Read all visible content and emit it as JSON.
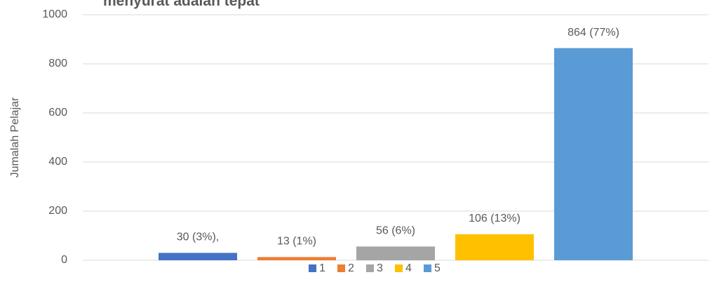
{
  "chart_data": {
    "type": "bar",
    "title": "menyurat adalah tepat",
    "y_label": "Jumalah Pelajar",
    "categories": [
      null
    ],
    "series": [
      {
        "name": "1",
        "color": "#4472c4",
        "values": [
          30
        ],
        "value_labels": [
          "30 (3%),"
        ]
      },
      {
        "name": "2",
        "color": "#ed7d31",
        "values": [
          13
        ],
        "value_labels": [
          "13 (1%)"
        ]
      },
      {
        "name": "3",
        "color": "#a5a5a5",
        "values": [
          56
        ],
        "value_labels": [
          "56 (6%)"
        ]
      },
      {
        "name": "4",
        "color": "#ffc000",
        "values": [
          106
        ],
        "value_labels": [
          "106 (13%)"
        ]
      },
      {
        "name": "5",
        "color": "#5b9bd5",
        "values": [
          864
        ],
        "value_labels": [
          "864 (77%)"
        ]
      }
    ],
    "ylim": [
      0,
      1000
    ],
    "yticks": [
      0,
      200,
      400,
      600,
      800,
      1000
    ],
    "grid": true,
    "legend": "bottom"
  }
}
